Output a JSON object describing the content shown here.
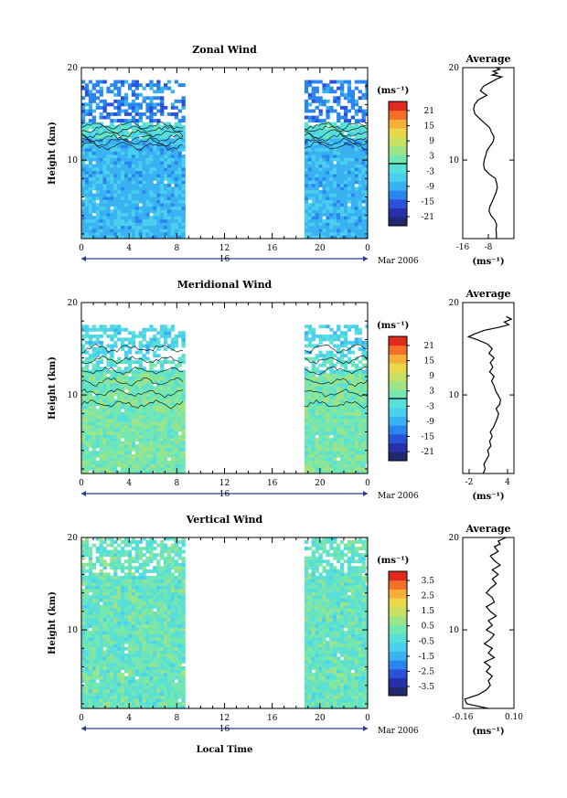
{
  "colors": {
    "colormap": [
      "#202a6a",
      "#2630a8",
      "#2a52d8",
      "#2a86ee",
      "#3ab2f2",
      "#4ad0ee",
      "#58e0d8",
      "#74e6b0",
      "#9ee486",
      "#c8e064",
      "#ead848",
      "#f6b03a",
      "#f2702a",
      "#e02a1e"
    ],
    "contour": "#000000",
    "background": "#ffffff"
  },
  "x_label": "Local Time",
  "date_label": "Mar 2006",
  "day_label": "16",
  "unit_label": "(ms⁻¹)",
  "chart_data": [
    {
      "type": "heatmap",
      "title": "Zonal Wind",
      "ylabel": "Height (km)",
      "xlim": [
        0,
        24
      ],
      "ylim": [
        1.5,
        20
      ],
      "x_ticks": [
        "0",
        "4",
        "8",
        "12",
        "16",
        "20",
        "0"
      ],
      "y_ticks": [
        "10",
        "20"
      ],
      "data_segments": [
        [
          0,
          8.7
        ],
        [
          18.7,
          24
        ]
      ],
      "data_top_km": 18.5,
      "colorbar": {
        "ticks": [
          "21",
          "15",
          "9",
          "3",
          "-3",
          "-9",
          "-15",
          "-21"
        ],
        "range": [
          -24,
          24
        ],
        "zero_line": true
      },
      "average": {
        "title": "Average",
        "xlim": [
          -16,
          0
        ],
        "x_ticks": [
          "-16",
          "-8"
        ],
        "y_ticks": [
          "10",
          "20"
        ],
        "x": [
          -5.5,
          -5.5,
          -5.6,
          -5.4,
          -6,
          -7.2,
          -7.8,
          -7.5,
          -6.8,
          -6.2,
          -5.6,
          -5.2,
          -5.4,
          -5.8,
          -7.8,
          -9.2,
          -9.5,
          -9.3,
          -8.8,
          -8.5,
          -7.5,
          -6.5,
          -6.2,
          -7,
          -7.6,
          -9.2,
          -10.8,
          -12.2,
          -12.6,
          -12.3,
          -11.2,
          -8.5,
          -10.5,
          -9.5,
          -6.8,
          -5.2,
          -3.8,
          -6.8,
          -5.2,
          -6.5,
          -4.5,
          -5.5,
          -4.2
        ],
        "y": [
          1.5,
          2,
          2.5,
          3,
          3.5,
          4,
          4.5,
          5,
          5.5,
          6,
          6.5,
          7,
          7.5,
          8,
          8.5,
          9,
          9.5,
          10,
          10.5,
          11,
          11.5,
          12,
          12.5,
          13,
          13.5,
          14,
          14.5,
          15,
          15.5,
          16,
          16.5,
          17,
          17.5,
          18,
          18.5,
          18.8,
          19,
          19.2,
          19.4,
          19.6,
          19.8,
          20,
          20
        ]
      }
    },
    {
      "type": "heatmap",
      "title": "Meridional Wind",
      "ylabel": "Height (km)",
      "xlim": [
        0,
        24
      ],
      "ylim": [
        1.5,
        20
      ],
      "x_ticks": [
        "0",
        "4",
        "8",
        "12",
        "16",
        "20",
        "0"
      ],
      "y_ticks": [
        "10",
        "20"
      ],
      "data_segments": [
        [
          0,
          8.7
        ],
        [
          18.7,
          24
        ]
      ],
      "data_top_km": 17.5,
      "colorbar": {
        "ticks": [
          "21",
          "15",
          "9",
          "3",
          "-3",
          "-9",
          "-15",
          "-21"
        ],
        "range": [
          -24,
          24
        ],
        "zero_line": true
      },
      "average": {
        "title": "Average",
        "xlim": [
          -3,
          5
        ],
        "x_ticks": [
          "-2",
          "4"
        ],
        "y_ticks": [
          "10",
          "20"
        ],
        "x": [
          0.2,
          0.5,
          0.3,
          0.7,
          1.1,
          0.9,
          1.4,
          1.2,
          1.6,
          1.3,
          1.8,
          2.1,
          2.4,
          2.6,
          2.2,
          2.8,
          2.9,
          2.5,
          2.1,
          1.9,
          1.5,
          1.9,
          1.2,
          1.7,
          1.3,
          1.9,
          1.1,
          1.6,
          0.9,
          -0.8,
          -2.1,
          -1.2,
          0.4,
          2.5,
          4.2,
          3.5,
          4.6,
          3.8
        ],
        "y": [
          1.5,
          2,
          2.5,
          3,
          3.5,
          4,
          4.5,
          5,
          5.5,
          6,
          6.5,
          7,
          7.5,
          8,
          8.5,
          9,
          9.5,
          10,
          10.5,
          11,
          11.5,
          12,
          12.5,
          13,
          13.5,
          14,
          14.5,
          15,
          15.5,
          16,
          16.3,
          16.6,
          17,
          17.3,
          17.6,
          17.9,
          18.2,
          18.5
        ]
      }
    },
    {
      "type": "heatmap",
      "title": "Vertical Wind",
      "ylabel": "Height (km)",
      "xlim": [
        0,
        24
      ],
      "ylim": [
        1.5,
        20
      ],
      "x_ticks": [
        "0",
        "4",
        "8",
        "12",
        "16",
        "20",
        "0"
      ],
      "y_ticks": [
        "10",
        "20"
      ],
      "data_segments": [
        [
          0,
          8.7
        ],
        [
          18.7,
          24
        ]
      ],
      "data_top_km": 20,
      "colorbar": {
        "ticks": [
          "3.5",
          "2.5",
          "1.5",
          "0.5",
          "-0.5",
          "-1.5",
          "-2.5",
          "-3.5"
        ],
        "range": [
          -4,
          4
        ],
        "zero_line": false
      },
      "average": {
        "title": "Average",
        "xlim": [
          -0.16,
          0.1
        ],
        "x_ticks": [
          "-0.16",
          "0.10"
        ],
        "y_ticks": [
          "10",
          "20"
        ],
        "x": [
          -0.03,
          -0.14,
          -0.15,
          -0.08,
          -0.04,
          -0.02,
          -0.03,
          -0.01,
          -0.04,
          -0.02,
          -0.05,
          0.0,
          -0.03,
          -0.01,
          -0.05,
          -0.02,
          0.0,
          -0.04,
          -0.01,
          -0.03,
          0.01,
          -0.02,
          -0.04,
          0.0,
          -0.01,
          -0.04,
          -0.02,
          0.01,
          -0.01,
          0.02,
          -0.01,
          0.03,
          0.0,
          -0.02,
          0.02,
          0.0,
          0.03,
          0.02,
          0.06
        ],
        "y": [
          1.5,
          2,
          2.5,
          3,
          3.5,
          4,
          4.5,
          5,
          5.5,
          6,
          6.5,
          7,
          7.5,
          8,
          8.5,
          9,
          9.5,
          10,
          10.5,
          11,
          11.5,
          12,
          12.5,
          13,
          13.5,
          14,
          14.5,
          15,
          15.5,
          16,
          16.5,
          17,
          17.5,
          18,
          18.5,
          19,
          19.3,
          19.6,
          20
        ]
      }
    }
  ]
}
